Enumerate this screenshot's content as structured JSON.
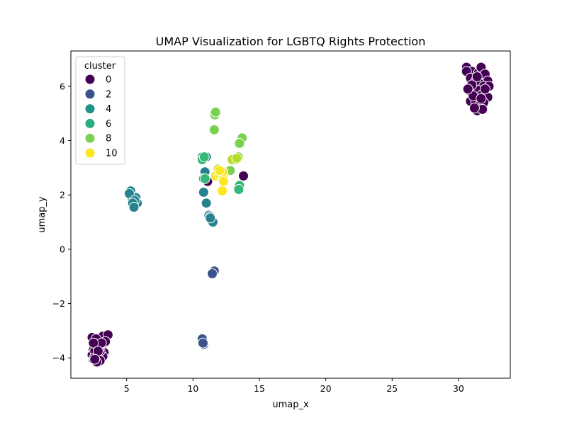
{
  "chart_data": {
    "type": "scatter",
    "title": "UMAP Visualization for LGBTQ Rights Protection",
    "xlabel": "umap_x",
    "ylabel": "umap_y",
    "xlim": [
      0.8,
      33.9
    ],
    "ylim": [
      -4.75,
      7.3
    ],
    "xticks": [
      5,
      10,
      15,
      20,
      25,
      30
    ],
    "yticks": [
      -4,
      -2,
      0,
      2,
      4,
      6
    ],
    "xtick_labels": [
      "5",
      "10",
      "15",
      "20",
      "25",
      "30"
    ],
    "ytick_labels": [
      "−4",
      "−2",
      "0",
      "2",
      "4",
      "6"
    ],
    "grid": false,
    "legend": {
      "title": "cluster",
      "placement": "top-left",
      "entries": [
        {
          "label": "0",
          "color": "#440154"
        },
        {
          "label": "2",
          "color": "#3b528b"
        },
        {
          "label": "4",
          "color": "#21918c"
        },
        {
          "label": "6",
          "color": "#27ad81"
        },
        {
          "label": "8",
          "color": "#7ad151"
        },
        {
          "label": "10",
          "color": "#fde725"
        }
      ]
    },
    "colors": {
      "0": "#440154",
      "1": "#482878",
      "2": "#3b528b",
      "3": "#31688e",
      "4": "#26828e",
      "5": "#1f9e89",
      "6": "#35b779",
      "7": "#6ece58",
      "8": "#7ad151",
      "9": "#b5de2b",
      "10": "#fde725"
    },
    "points": [
      {
        "x": 2.4,
        "y": -3.25,
        "c": 0
      },
      {
        "x": 2.6,
        "y": -3.5,
        "c": 0
      },
      {
        "x": 2.9,
        "y": -3.3,
        "c": 0
      },
      {
        "x": 3.2,
        "y": -3.2,
        "c": 0
      },
      {
        "x": 3.6,
        "y": -3.15,
        "c": 0
      },
      {
        "x": 2.5,
        "y": -3.7,
        "c": 0
      },
      {
        "x": 2.8,
        "y": -3.85,
        "c": 0
      },
      {
        "x": 3.1,
        "y": -3.6,
        "c": 0
      },
      {
        "x": 3.4,
        "y": -3.4,
        "c": 0
      },
      {
        "x": 3.3,
        "y": -3.8,
        "c": 0
      },
      {
        "x": 2.4,
        "y": -3.9,
        "c": 0
      },
      {
        "x": 2.7,
        "y": -4.1,
        "c": 0
      },
      {
        "x": 3.0,
        "y": -4.0,
        "c": 0
      },
      {
        "x": 2.5,
        "y": -4.05,
        "c": 0
      },
      {
        "x": 2.9,
        "y": -4.15,
        "c": 0
      },
      {
        "x": 3.2,
        "y": -3.95,
        "c": 0
      },
      {
        "x": 2.6,
        "y": -3.75,
        "c": 0
      },
      {
        "x": 2.8,
        "y": -3.55,
        "c": 0
      },
      {
        "x": 3.0,
        "y": -3.75,
        "c": 0
      },
      {
        "x": 2.7,
        "y": -3.3,
        "c": 0
      },
      {
        "x": 2.9,
        "y": -3.7,
        "c": 0
      },
      {
        "x": 3.1,
        "y": -3.45,
        "c": 0
      },
      {
        "x": 2.5,
        "y": -3.45,
        "c": 0
      },
      {
        "x": 3.0,
        "y": -4.1,
        "c": 0
      },
      {
        "x": 2.55,
        "y": -4.0,
        "c": 0
      },
      {
        "x": 2.75,
        "y": -4.15,
        "c": 0
      },
      {
        "x": 2.85,
        "y": -3.75,
        "c": 0
      },
      {
        "x": 2.6,
        "y": -4.05,
        "c": 0
      },
      {
        "x": 30.6,
        "y": 6.7,
        "c": 0
      },
      {
        "x": 31.0,
        "y": 6.55,
        "c": 0
      },
      {
        "x": 31.5,
        "y": 6.5,
        "c": 0
      },
      {
        "x": 31.7,
        "y": 6.7,
        "c": 0
      },
      {
        "x": 32.0,
        "y": 6.45,
        "c": 0
      },
      {
        "x": 32.2,
        "y": 6.2,
        "c": 0
      },
      {
        "x": 30.6,
        "y": 6.55,
        "c": 0
      },
      {
        "x": 30.9,
        "y": 6.3,
        "c": 0
      },
      {
        "x": 31.3,
        "y": 6.2,
        "c": 0
      },
      {
        "x": 31.6,
        "y": 6.1,
        "c": 0
      },
      {
        "x": 31.9,
        "y": 6.0,
        "c": 0
      },
      {
        "x": 32.3,
        "y": 6.0,
        "c": 0
      },
      {
        "x": 30.8,
        "y": 5.85,
        "c": 0
      },
      {
        "x": 31.2,
        "y": 5.8,
        "c": 0
      },
      {
        "x": 31.5,
        "y": 5.85,
        "c": 0
      },
      {
        "x": 31.8,
        "y": 5.7,
        "c": 0
      },
      {
        "x": 32.2,
        "y": 5.6,
        "c": 0
      },
      {
        "x": 30.9,
        "y": 5.45,
        "c": 0
      },
      {
        "x": 31.3,
        "y": 5.4,
        "c": 0
      },
      {
        "x": 31.6,
        "y": 5.3,
        "c": 0
      },
      {
        "x": 31.9,
        "y": 5.4,
        "c": 0
      },
      {
        "x": 31.4,
        "y": 5.1,
        "c": 0
      },
      {
        "x": 31.8,
        "y": 5.15,
        "c": 0
      },
      {
        "x": 31.0,
        "y": 6.05,
        "c": 0
      },
      {
        "x": 31.1,
        "y": 5.65,
        "c": 0
      },
      {
        "x": 31.7,
        "y": 5.55,
        "c": 0
      },
      {
        "x": 32.0,
        "y": 5.9,
        "c": 0
      },
      {
        "x": 31.4,
        "y": 6.35,
        "c": 0
      },
      {
        "x": 30.7,
        "y": 5.9,
        "c": 0
      },
      {
        "x": 31.2,
        "y": 5.2,
        "c": 0
      },
      {
        "x": 13.8,
        "y": 2.7,
        "c": 0
      },
      {
        "x": 11.1,
        "y": 2.5,
        "c": 0
      },
      {
        "x": 11.5,
        "y": -0.85,
        "c": 2
      },
      {
        "x": 11.6,
        "y": -0.8,
        "c": 2
      },
      {
        "x": 11.45,
        "y": -0.9,
        "c": 2
      },
      {
        "x": 10.7,
        "y": -3.3,
        "c": 2
      },
      {
        "x": 10.8,
        "y": -3.5,
        "c": 2
      },
      {
        "x": 10.75,
        "y": -3.45,
        "c": 2
      },
      {
        "x": 5.3,
        "y": 2.15,
        "c": 4
      },
      {
        "x": 5.4,
        "y": 1.9,
        "c": 4
      },
      {
        "x": 5.7,
        "y": 1.9,
        "c": 4
      },
      {
        "x": 5.5,
        "y": 1.6,
        "c": 4
      },
      {
        "x": 5.8,
        "y": 1.7,
        "c": 4
      },
      {
        "x": 5.2,
        "y": 2.05,
        "c": 4
      },
      {
        "x": 5.6,
        "y": 1.8,
        "c": 4
      },
      {
        "x": 5.45,
        "y": 1.7,
        "c": 4
      },
      {
        "x": 5.55,
        "y": 1.55,
        "c": 4
      },
      {
        "x": 10.7,
        "y": 3.4,
        "c": 4
      },
      {
        "x": 11.0,
        "y": 3.4,
        "c": 4
      },
      {
        "x": 10.9,
        "y": 2.85,
        "c": 4
      },
      {
        "x": 10.8,
        "y": 2.6,
        "c": 4
      },
      {
        "x": 10.8,
        "y": 2.1,
        "c": 4
      },
      {
        "x": 11.0,
        "y": 1.7,
        "c": 4
      },
      {
        "x": 11.2,
        "y": 1.25,
        "c": 4
      },
      {
        "x": 11.5,
        "y": 1.0,
        "c": 4
      },
      {
        "x": 11.3,
        "y": 1.2,
        "c": 4
      },
      {
        "x": 11.3,
        "y": 1.15,
        "c": 4
      },
      {
        "x": 10.7,
        "y": 3.3,
        "c": 6
      },
      {
        "x": 10.85,
        "y": 3.4,
        "c": 6
      },
      {
        "x": 10.9,
        "y": 2.6,
        "c": 6
      },
      {
        "x": 13.4,
        "y": 2.25,
        "c": 6
      },
      {
        "x": 13.5,
        "y": 2.35,
        "c": 6
      },
      {
        "x": 13.45,
        "y": 2.2,
        "c": 6
      },
      {
        "x": 11.6,
        "y": 5.0,
        "c": 8
      },
      {
        "x": 11.65,
        "y": 4.95,
        "c": 8
      },
      {
        "x": 11.7,
        "y": 5.05,
        "c": 8
      },
      {
        "x": 11.6,
        "y": 4.4,
        "c": 8
      },
      {
        "x": 13.7,
        "y": 4.1,
        "c": 8
      },
      {
        "x": 13.5,
        "y": 3.9,
        "c": 8
      },
      {
        "x": 13.4,
        "y": 3.4,
        "c": 8
      },
      {
        "x": 13.2,
        "y": 3.3,
        "c": 8
      },
      {
        "x": 12.8,
        "y": 2.9,
        "c": 8
      },
      {
        "x": 12.95,
        "y": 3.3,
        "c": 9
      },
      {
        "x": 11.9,
        "y": 2.95,
        "c": 9
      },
      {
        "x": 13.3,
        "y": 3.35,
        "c": 9
      },
      {
        "x": 11.7,
        "y": 2.7,
        "c": 10
      },
      {
        "x": 12.0,
        "y": 2.75,
        "c": 10
      },
      {
        "x": 12.3,
        "y": 2.7,
        "c": 10
      },
      {
        "x": 12.25,
        "y": 2.85,
        "c": 10
      },
      {
        "x": 12.3,
        "y": 2.5,
        "c": 10
      },
      {
        "x": 12.2,
        "y": 2.15,
        "c": 10
      },
      {
        "x": 12.0,
        "y": 2.9,
        "c": 10
      }
    ]
  }
}
